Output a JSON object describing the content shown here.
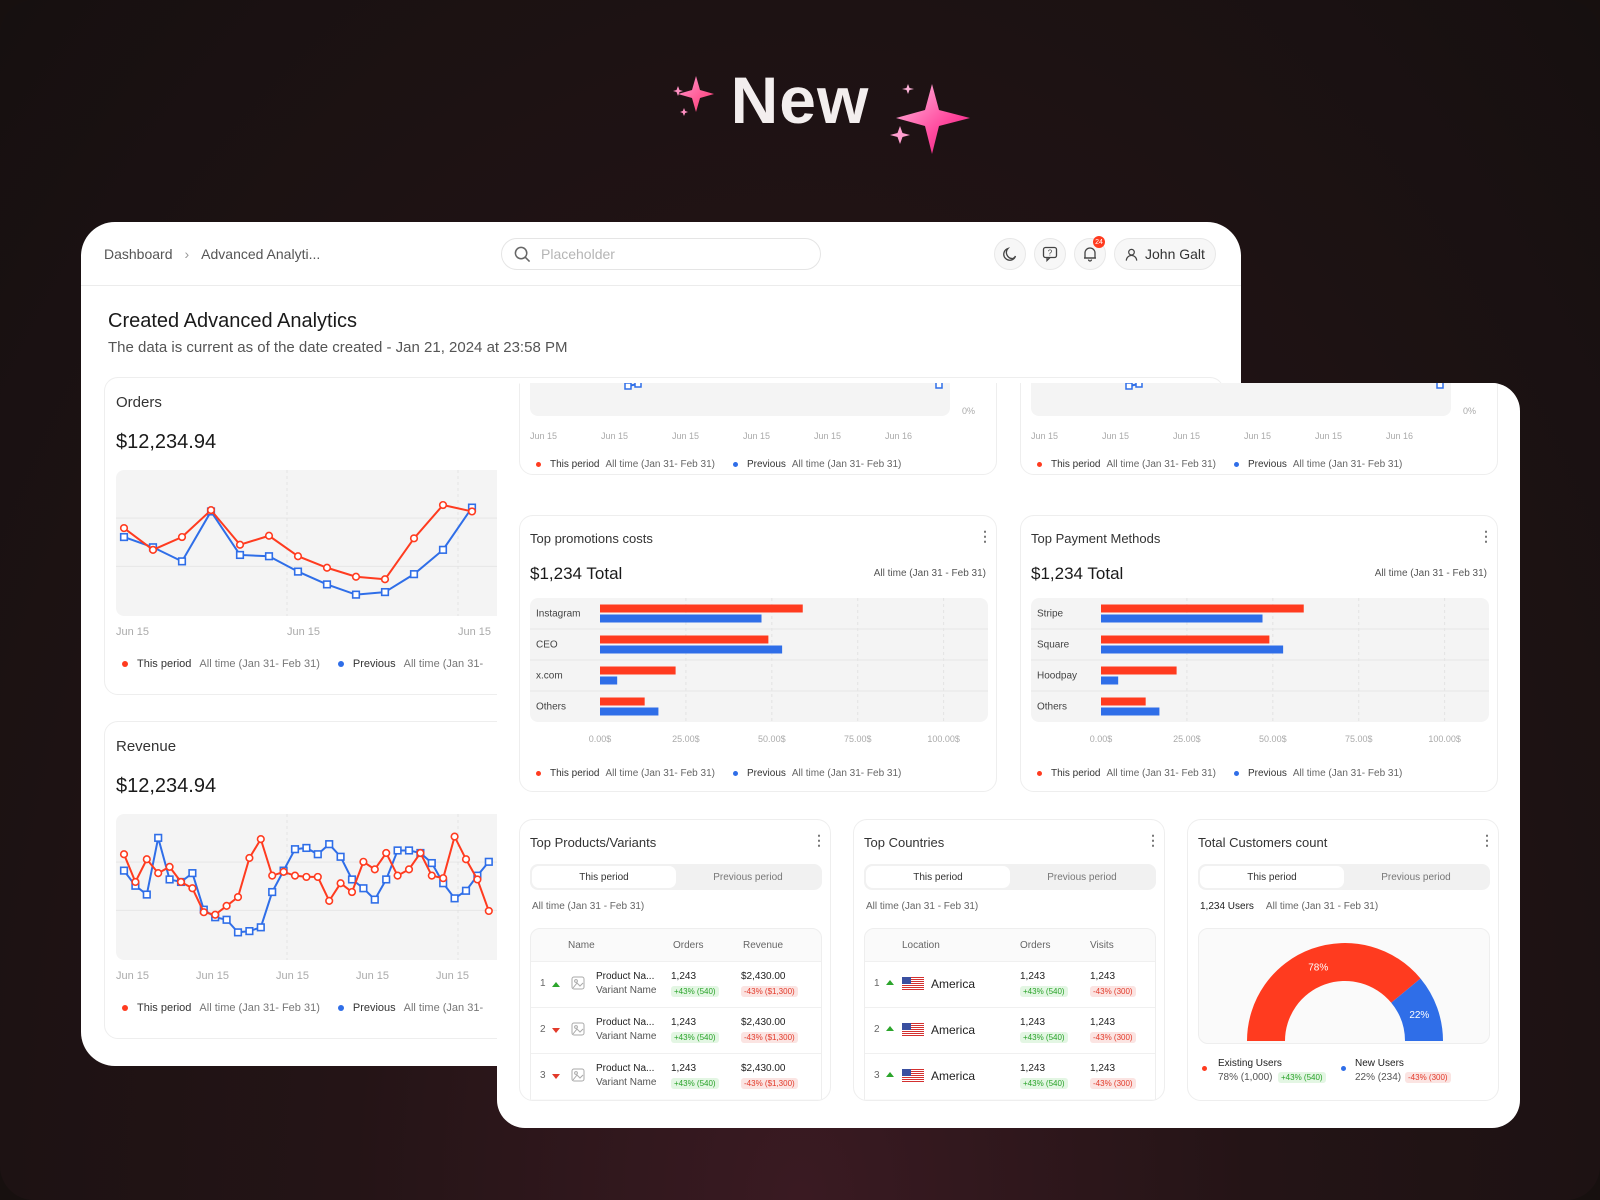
{
  "hero": {
    "title": "New"
  },
  "header": {
    "breadcrumb": [
      "Dashboard",
      "Advanced Analyti..."
    ],
    "search_placeholder": "Placeholder",
    "notification_count": "24",
    "user_name": "John Galt"
  },
  "page": {
    "title": "Created Advanced Analytics",
    "subtitle": "The data is current as of the date created - Jan 21, 2024 at 23:58 PM"
  },
  "legend": {
    "this_period": "This period",
    "previous": "Previous",
    "range": "All time (Jan 31- Feb 31)",
    "range_cut": "All time (Jan 31-"
  },
  "colors": {
    "this_period": "#ff3b1f",
    "previous": "#2f6ee8"
  },
  "orders": {
    "title": "Orders",
    "value": "$12,234.94",
    "x_labels": [
      "Jun 15",
      "Jun 15",
      "Jun 15"
    ]
  },
  "revenue": {
    "title": "Revenue",
    "value": "$12,234.94",
    "x_labels": [
      "Jun 15",
      "Jun 15",
      "Jun 15",
      "Jun 15",
      "Jun 15"
    ]
  },
  "front_top": {
    "x_labels": [
      "Jun 15",
      "Jun 15",
      "Jun 15",
      "Jun 15",
      "Jun 15",
      "Jun 16"
    ],
    "y_label": "0%"
  },
  "promotions": {
    "title": "Top promotions costs",
    "total": "$1,234 Total",
    "range": "All time (Jan 31 - Feb 31)",
    "categories": [
      "Instagram",
      "CEO",
      "x.com",
      "Others"
    ],
    "x_ticks": [
      "0.00$",
      "25.00$",
      "50.00$",
      "75.00$",
      "100.00$"
    ]
  },
  "payments": {
    "title": "Top Payment Methods",
    "total": "$1,234 Total",
    "range": "All time (Jan 31 - Feb 31)",
    "categories": [
      "Stripe",
      "Square",
      "Hoodpay",
      "Others"
    ],
    "x_ticks": [
      "0.00$",
      "25.00$",
      "50.00$",
      "75.00$",
      "100.00$"
    ]
  },
  "products": {
    "title": "Top Products/Variants",
    "tabs": [
      "This period",
      "Previous period"
    ],
    "range": "All time (Jan 31 - Feb 31)",
    "columns": [
      "Name",
      "Orders",
      "Revenue"
    ],
    "rows": [
      {
        "rank": "1",
        "trend": "up",
        "name": "Product Na...",
        "variant": "Variant Name",
        "orders": "1,243",
        "orders_delta": "+43% (540)",
        "revenue": "$2,430.00",
        "revenue_delta": "-43% ($1,300)"
      },
      {
        "rank": "2",
        "trend": "down",
        "name": "Product Na...",
        "variant": "Variant Name",
        "orders": "1,243",
        "orders_delta": "+43% (540)",
        "revenue": "$2,430.00",
        "revenue_delta": "-43% ($1,300)"
      },
      {
        "rank": "3",
        "trend": "down",
        "name": "Product Na...",
        "variant": "Variant Name",
        "orders": "1,243",
        "orders_delta": "+43% (540)",
        "revenue": "$2,430.00",
        "revenue_delta": "-43% ($1,300)"
      }
    ]
  },
  "countries": {
    "title": "Top Countries",
    "tabs": [
      "This period",
      "Previous period"
    ],
    "range": "All time (Jan 31 - Feb 31)",
    "columns": [
      "Location",
      "Orders",
      "Visits"
    ],
    "rows": [
      {
        "rank": "1",
        "trend": "up",
        "location": "America",
        "orders": "1,243",
        "orders_delta": "+43% (540)",
        "visits": "1,243",
        "visits_delta": "-43% (300)"
      },
      {
        "rank": "2",
        "trend": "up",
        "location": "America",
        "orders": "1,243",
        "orders_delta": "+43% (540)",
        "visits": "1,243",
        "visits_delta": "-43% (300)"
      },
      {
        "rank": "3",
        "trend": "up",
        "location": "America",
        "orders": "1,243",
        "orders_delta": "+43% (540)",
        "visits": "1,243",
        "visits_delta": "-43% (300)"
      }
    ]
  },
  "customers": {
    "title": "Total Customers count",
    "tabs": [
      "This period",
      "Previous period"
    ],
    "users": "1,234 Users",
    "range": "All time (Jan 31 - Feb 31)",
    "existing_label": "Existing Users",
    "existing_value": "78% (1,000)",
    "existing_delta": "+43% (540)",
    "new_label": "New Users",
    "new_value": "22% (234)",
    "new_delta": "-43% (300)",
    "existing_pct_label": "78%",
    "new_pct_label": "22%"
  },
  "chart_data": [
    {
      "type": "line",
      "title": "Orders",
      "series": [
        {
          "name": "This period",
          "values": [
            64,
            47,
            57,
            78,
            51,
            58,
            42,
            33,
            26,
            24,
            56,
            82,
            77
          ]
        },
        {
          "name": "Previous",
          "values": [
            57,
            49,
            38,
            77,
            43,
            42,
            30,
            20,
            12,
            14,
            28,
            47,
            80
          ]
        }
      ],
      "ylim": [
        0,
        100
      ]
    },
    {
      "type": "line",
      "title": "Revenue",
      "series": [
        {
          "name": "This period",
          "values": [
            76,
            54,
            72,
            61,
            66,
            54,
            49,
            30,
            28,
            35,
            42,
            73,
            88,
            59,
            62,
            59,
            58,
            58,
            39,
            53,
            46,
            70,
            64,
            77,
            59,
            64,
            77,
            59,
            57,
            90,
            72,
            56,
            31
          ]
        },
        {
          "name": "Previous",
          "values": [
            63,
            51,
            44,
            89,
            56,
            54,
            61,
            32,
            26,
            24,
            14,
            15,
            18,
            46,
            63,
            80,
            81,
            76,
            84,
            74,
            56,
            49,
            40,
            56,
            79,
            79,
            77,
            69,
            53,
            41,
            47,
            59,
            70
          ]
        }
      ],
      "ylim": [
        0,
        100
      ]
    },
    {
      "type": "bar",
      "title": "Top promotions costs",
      "categories": [
        "Instagram",
        "CEO",
        "x.com",
        "Others"
      ],
      "series": [
        {
          "name": "This period",
          "values": [
            59,
            49,
            22,
            13
          ]
        },
        {
          "name": "Previous",
          "values": [
            47,
            53,
            5,
            17
          ]
        }
      ],
      "xlim": [
        0,
        110
      ]
    },
    {
      "type": "bar",
      "title": "Top Payment Methods",
      "categories": [
        "Stripe",
        "Square",
        "Hoodpay",
        "Others"
      ],
      "series": [
        {
          "name": "This period",
          "values": [
            59,
            49,
            22,
            13
          ]
        },
        {
          "name": "Previous",
          "values": [
            47,
            53,
            5,
            17
          ]
        }
      ],
      "xlim": [
        0,
        110
      ]
    },
    {
      "type": "pie",
      "title": "Total Customers count",
      "categories": [
        "Existing Users",
        "New Users"
      ],
      "values": [
        78,
        22
      ]
    }
  ]
}
